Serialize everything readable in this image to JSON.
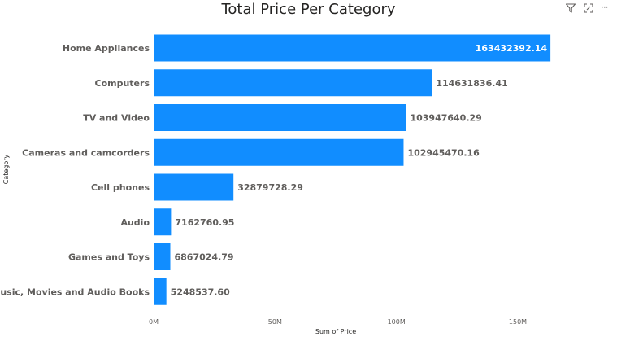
{
  "colors": {
    "bar": "#118dff",
    "label_inside": "#ffffff",
    "label_outside": "#605e5c",
    "icon": "#605e5c"
  },
  "header": {
    "icons": [
      "filter-icon",
      "focus-mode-icon",
      "more-options-icon"
    ],
    "more_options_glyph": "···"
  },
  "chart_data": {
    "type": "bar",
    "orientation": "horizontal",
    "title": "Total Price Per Category",
    "xlabel": "Sum of Price",
    "ylabel": "Category",
    "categories": [
      "Home Appliances",
      "Computers",
      "TV and Video",
      "Cameras and camcorders",
      "Cell phones",
      "Audio",
      "Games and Toys",
      "Music, Movies and Audio Books"
    ],
    "values": [
      163432392.14,
      114631836.41,
      103947640.29,
      102945470.16,
      32879728.29,
      7162760.95,
      6867024.79,
      5248537.6
    ],
    "data_labels": [
      "163432392.14",
      "114631836.41",
      "103947640.29",
      "102945470.16",
      "32879728.29",
      "7162760.95",
      "6867024.79",
      "5248537.60"
    ],
    "x_ticks": [
      0,
      50000000,
      100000000,
      150000000
    ],
    "x_tick_labels": [
      "0M",
      "50M",
      "100M",
      "150M"
    ],
    "xlim": [
      0,
      165000000
    ],
    "grid": false,
    "legend": "none"
  }
}
